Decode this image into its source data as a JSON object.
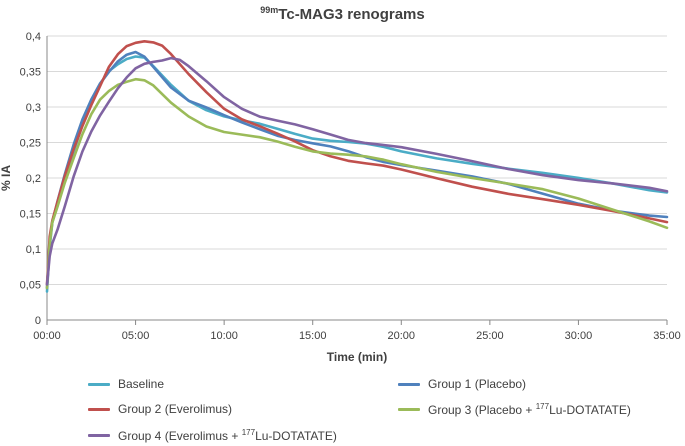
{
  "title": {
    "prefix": "99m",
    "text": "Tc-MAG3 renograms"
  },
  "chart_data": {
    "type": "line",
    "title": "99mTc-MAG3 renograms",
    "xlabel": "Time (min)",
    "ylabel": "% IA",
    "xlim": [
      0,
      35
    ],
    "ylim": [
      0,
      0.4
    ],
    "xticks": [
      0,
      5,
      10,
      15,
      20,
      25,
      30,
      35
    ],
    "xtick_labels": [
      "00:00",
      "05:00",
      "10:00",
      "15:00",
      "20:00",
      "25:00",
      "30:00",
      "35:00"
    ],
    "yticks": [
      0,
      0.05,
      0.1,
      0.15,
      0.2,
      0.25,
      0.3,
      0.35,
      0.4
    ],
    "ytick_labels": [
      "0",
      "0,05",
      "0,1",
      "0,15",
      "0,2",
      "0,25",
      "0,3",
      "0,35",
      "0,4"
    ],
    "grid": "horizontal",
    "series": [
      {
        "name": "Baseline",
        "color": "#4BACC6",
        "x": [
          0,
          0.15,
          0.3,
          0.6,
          1,
          1.5,
          2,
          2.5,
          3,
          3.5,
          4,
          4.5,
          5,
          5.5,
          6,
          7,
          8,
          9,
          10,
          11,
          12,
          13,
          14,
          15,
          16,
          17,
          18,
          19,
          20,
          22,
          24,
          26,
          28,
          30,
          32,
          34,
          35
        ],
        "y": [
          0.04,
          0.1,
          0.135,
          0.165,
          0.2,
          0.24,
          0.275,
          0.305,
          0.33,
          0.35,
          0.362,
          0.37,
          0.372,
          0.368,
          0.355,
          0.33,
          0.31,
          0.298,
          0.288,
          0.28,
          0.274,
          0.268,
          0.263,
          0.258,
          0.254,
          0.25,
          0.246,
          0.242,
          0.238,
          0.23,
          0.222,
          0.213,
          0.205,
          0.198,
          0.192,
          0.185,
          0.182
        ]
      },
      {
        "name": "Group 1 (Placebo)",
        "color": "#4F81BD",
        "x": [
          0,
          0.15,
          0.3,
          0.6,
          1,
          1.5,
          2,
          2.5,
          3,
          3.5,
          4,
          4.5,
          5,
          5.5,
          6,
          7,
          8,
          9,
          10,
          11,
          12,
          13,
          14,
          15,
          16,
          17,
          18,
          19,
          20,
          22,
          24,
          26,
          28,
          30,
          32,
          34,
          35
        ],
        "y": [
          0.045,
          0.11,
          0.14,
          0.17,
          0.205,
          0.245,
          0.28,
          0.31,
          0.335,
          0.352,
          0.365,
          0.372,
          0.375,
          0.37,
          0.358,
          0.33,
          0.31,
          0.298,
          0.286,
          0.277,
          0.27,
          0.262,
          0.255,
          0.248,
          0.242,
          0.236,
          0.23,
          0.225,
          0.22,
          0.21,
          0.2,
          0.19,
          0.178,
          0.166,
          0.156,
          0.147,
          0.143
        ]
      },
      {
        "name": "Group 2 (Everolimus)",
        "color": "#C0504D",
        "x": [
          0,
          0.15,
          0.3,
          0.6,
          1,
          1.5,
          2,
          2.5,
          3,
          3.5,
          4,
          4.5,
          5,
          5.5,
          6,
          6.5,
          7,
          8,
          9,
          10,
          11,
          12,
          13,
          14,
          15,
          16,
          17,
          18,
          19,
          20,
          22,
          24,
          26,
          28,
          30,
          32,
          34,
          35
        ],
        "y": [
          0.05,
          0.12,
          0.14,
          0.165,
          0.2,
          0.24,
          0.275,
          0.305,
          0.33,
          0.355,
          0.372,
          0.385,
          0.392,
          0.395,
          0.392,
          0.385,
          0.372,
          0.345,
          0.322,
          0.3,
          0.284,
          0.272,
          0.26,
          0.25,
          0.24,
          0.233,
          0.226,
          0.22,
          0.215,
          0.21,
          0.2,
          0.19,
          0.18,
          0.17,
          0.16,
          0.151,
          0.143,
          0.14
        ]
      },
      {
        "name": "Group 3 (Placebo + 177Lu-DOTATATE)",
        "color": "#9BBB59",
        "x": [
          0,
          0.15,
          0.3,
          0.6,
          1,
          1.5,
          2,
          2.5,
          3,
          3.5,
          4,
          4.5,
          5,
          5.5,
          6,
          7,
          8,
          9,
          10,
          11,
          12,
          13,
          14,
          15,
          16,
          17,
          18,
          19,
          20,
          22,
          24,
          26,
          28,
          30,
          32,
          34,
          35
        ],
        "y": [
          0.045,
          0.105,
          0.135,
          0.16,
          0.195,
          0.23,
          0.262,
          0.288,
          0.308,
          0.322,
          0.333,
          0.338,
          0.34,
          0.336,
          0.328,
          0.305,
          0.288,
          0.275,
          0.266,
          0.26,
          0.255,
          0.25,
          0.245,
          0.24,
          0.236,
          0.232,
          0.228,
          0.224,
          0.22,
          0.211,
          0.202,
          0.192,
          0.182,
          0.169,
          0.155,
          0.141,
          0.132
        ]
      },
      {
        "name": "Group 4 (Everolimus + 177Lu-DOTATATE)",
        "color": "#8064A2",
        "x": [
          0,
          0.15,
          0.3,
          0.6,
          1,
          1.5,
          2,
          2.5,
          3,
          3.5,
          4,
          4.5,
          5,
          5.5,
          6,
          6.5,
          7,
          7.5,
          8,
          9,
          10,
          11,
          12,
          13,
          14,
          15,
          16,
          17,
          18,
          19,
          20,
          22,
          24,
          26,
          28,
          30,
          32,
          34,
          35
        ],
        "y": [
          0.05,
          0.09,
          0.11,
          0.13,
          0.16,
          0.2,
          0.235,
          0.265,
          0.29,
          0.31,
          0.327,
          0.34,
          0.352,
          0.36,
          0.365,
          0.368,
          0.37,
          0.365,
          0.355,
          0.335,
          0.315,
          0.3,
          0.288,
          0.28,
          0.273,
          0.267,
          0.262,
          0.256,
          0.251,
          0.246,
          0.241,
          0.232,
          0.224,
          0.215,
          0.206,
          0.197,
          0.19,
          0.184,
          0.181
        ]
      }
    ],
    "legend": {
      "placement": "bottom"
    }
  },
  "legend_items": {
    "baseline": {
      "label": "Baseline",
      "color": "#4BACC6"
    },
    "group1": {
      "label": "Group 1 (Placebo)",
      "color": "#4F81BD"
    },
    "group2": {
      "label": "Group 2 (Everolimus)",
      "color": "#C0504D"
    },
    "group3": {
      "prefix": "Group 3 (Placebo + ",
      "sup": "177",
      "suffix": "Lu-DOTATATE)",
      "color": "#9BBB59"
    },
    "group4": {
      "prefix": "Group 4 (Everolimus + ",
      "sup": "177",
      "suffix": "Lu-DOTATATE)",
      "color": "#8064A2"
    }
  }
}
